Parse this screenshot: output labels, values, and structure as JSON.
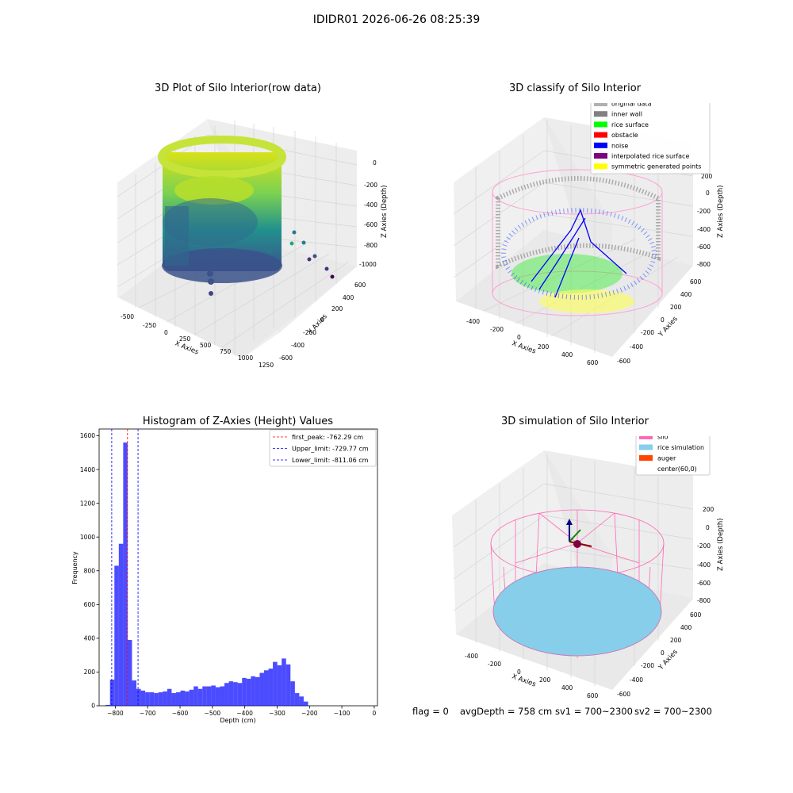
{
  "figure": {
    "suptitle": "IDIDR01 2026-06-26 08:25:39",
    "footer": {
      "flag": "flag = 0",
      "avg_depth": "avgDepth = 758 cm",
      "sv1": "sv1 = 700~2300",
      "sv2": "sv2 = 700~2300"
    }
  },
  "panels": {
    "raw": {
      "title": "3D Plot of Silo Interior(row data)",
      "xlabel": "X Axies",
      "ylabel": "Y Axies",
      "zlabel": "Z Axies (Depth)",
      "xticks": [
        "-500",
        "-250",
        "0",
        "250",
        "500",
        "750",
        "1000",
        "1250"
      ],
      "yticks": [
        "600",
        "400",
        "200",
        "0",
        "-200",
        "-400",
        "-600"
      ],
      "zticks": [
        "0",
        "-200",
        "-400",
        "-600",
        "-800",
        "-1000"
      ]
    },
    "classify": {
      "title": "3D classify of Silo Interior",
      "xlabel": "X Axies",
      "ylabel": "Y Axies",
      "zlabel": "Z Axies (Depth)",
      "xticks": [
        "-400",
        "-200",
        "0",
        "200",
        "400",
        "600"
      ],
      "yticks": [
        "600",
        "400",
        "200",
        "0",
        "-200",
        "-400",
        "-600"
      ],
      "zticks": [
        "200",
        "0",
        "-200",
        "-400",
        "-600",
        "-800"
      ],
      "legend": [
        {
          "label": "original data",
          "color": "#b0b0b0"
        },
        {
          "label": "inner wall",
          "color": "#808080"
        },
        {
          "label": "rice surface",
          "color": "#00ff00"
        },
        {
          "label": "obstacle",
          "color": "#ff0000"
        },
        {
          "label": "noise",
          "color": "#0000ff"
        },
        {
          "label": "interpolated rice surface",
          "color": "#800080"
        },
        {
          "label": "symmetric generated points",
          "color": "#ffff00"
        }
      ]
    },
    "simulation": {
      "title": "3D simulation of Silo Interior",
      "xlabel": "X Axies",
      "ylabel": "Y Axies",
      "zlabel": "Z Axies (Depth)",
      "xticks": [
        "-400",
        "-200",
        "0",
        "200",
        "400",
        "600"
      ],
      "yticks": [
        "600",
        "400",
        "200",
        "0",
        "-200",
        "-400",
        "-600"
      ],
      "zticks": [
        "200",
        "0",
        "-200",
        "-400",
        "-600",
        "-800"
      ],
      "legend": [
        {
          "label": "silo",
          "color": "#ff69b4"
        },
        {
          "label": "rice simulation",
          "color": "#87ceeb"
        },
        {
          "label": "auger",
          "color": "#ff4500"
        },
        {
          "label": "center(60,0)",
          "color": ""
        }
      ]
    }
  },
  "chart_data": {
    "type": "bar",
    "title": "Histogram of Z-Axies (Height) Values",
    "xlabel": "Depth (cm)",
    "ylabel": "Frequency",
    "xlim": [
      -850,
      10
    ],
    "ylim": [
      0,
      1640
    ],
    "xticks": [
      -800,
      -700,
      -600,
      -500,
      -400,
      -300,
      -200,
      -100,
      0
    ],
    "yticks": [
      0,
      200,
      400,
      600,
      800,
      1000,
      1200,
      1400,
      1600
    ],
    "bin_start": -830,
    "bin_width": 13.6,
    "values": [
      5,
      155,
      830,
      960,
      1560,
      390,
      150,
      100,
      90,
      80,
      80,
      75,
      80,
      85,
      100,
      75,
      80,
      90,
      85,
      95,
      115,
      100,
      115,
      115,
      120,
      110,
      115,
      135,
      145,
      140,
      135,
      165,
      160,
      175,
      170,
      195,
      210,
      220,
      260,
      240,
      280,
      245,
      145,
      75,
      55,
      25
    ],
    "color": "#0000ff",
    "vlines": [
      {
        "label": "first_peak: -762.29 cm",
        "x": -762.29,
        "color": "#ff0000"
      },
      {
        "label": "Upper_limit: -729.77 cm",
        "x": -729.77,
        "color": "#0000ff"
      },
      {
        "label": "Lower_limit: -811.06 cm",
        "x": -811.06,
        "color": "#0000ff"
      }
    ]
  }
}
